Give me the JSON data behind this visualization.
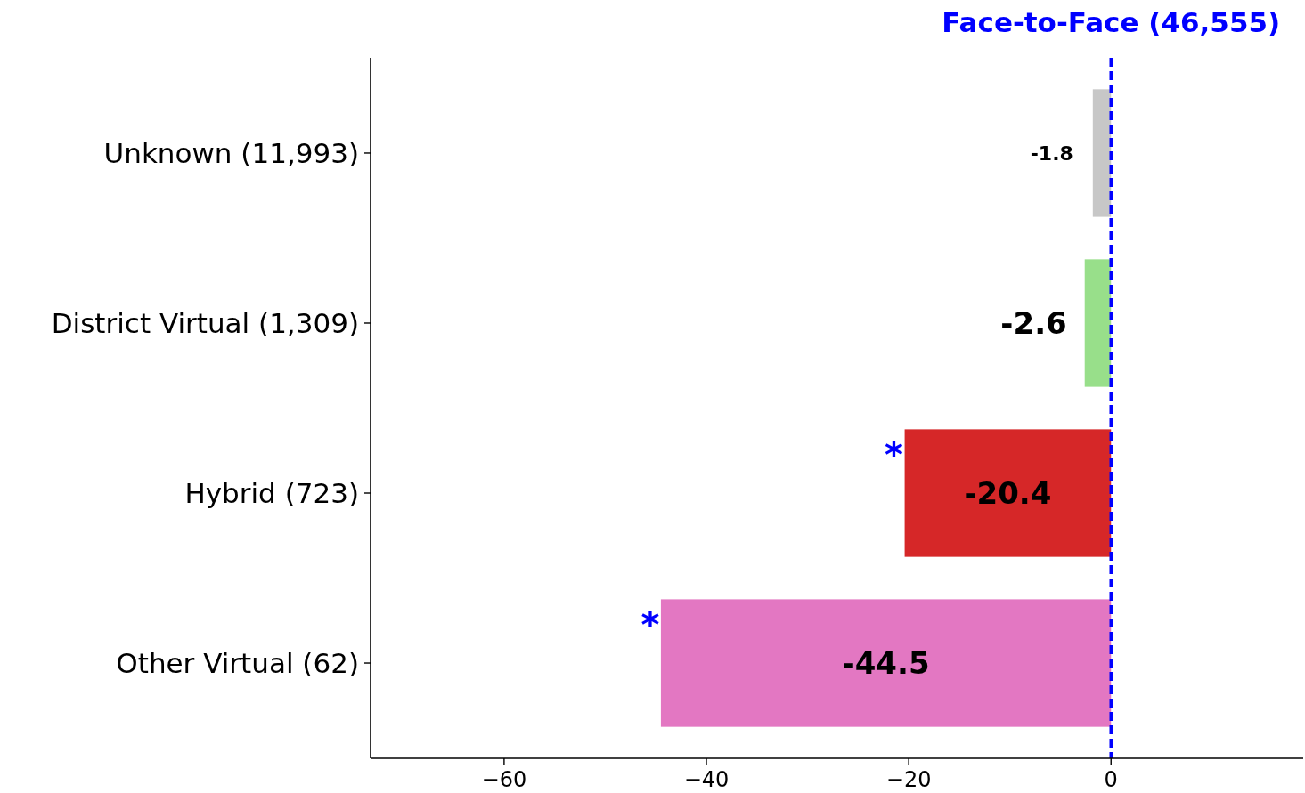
{
  "chart_data": {
    "type": "bar",
    "orientation": "horizontal",
    "categories": [
      "Unknown (11,993)",
      "District Virtual (1,309)",
      "Hybrid (723)",
      "Other Virtual (62)"
    ],
    "values": [
      -1.8,
      -2.6,
      -20.4,
      -44.5
    ],
    "colors": [
      "#c7c7c7",
      "#98df8a",
      "#d62728",
      "#e377c2"
    ],
    "xlim": [
      -73.2,
      19
    ],
    "xticks": [
      {
        "value": -60,
        "label": "−60"
      },
      {
        "value": -40,
        "label": "−40"
      },
      {
        "value": -20,
        "label": "−20"
      },
      0
    ],
    "data_labels": true,
    "ref_lines": [
      {
        "axis": "x",
        "value": 0,
        "label": "Face-to-Face (46,555)",
        "color": "#0000ff",
        "line_style": "dashed"
      }
    ],
    "annotations": [
      {
        "text": "*",
        "x": -20.4,
        "y": "Hybrid (723)"
      },
      {
        "text": "*",
        "x": -44.5,
        "y": "Other Virtual (62)"
      }
    ]
  }
}
